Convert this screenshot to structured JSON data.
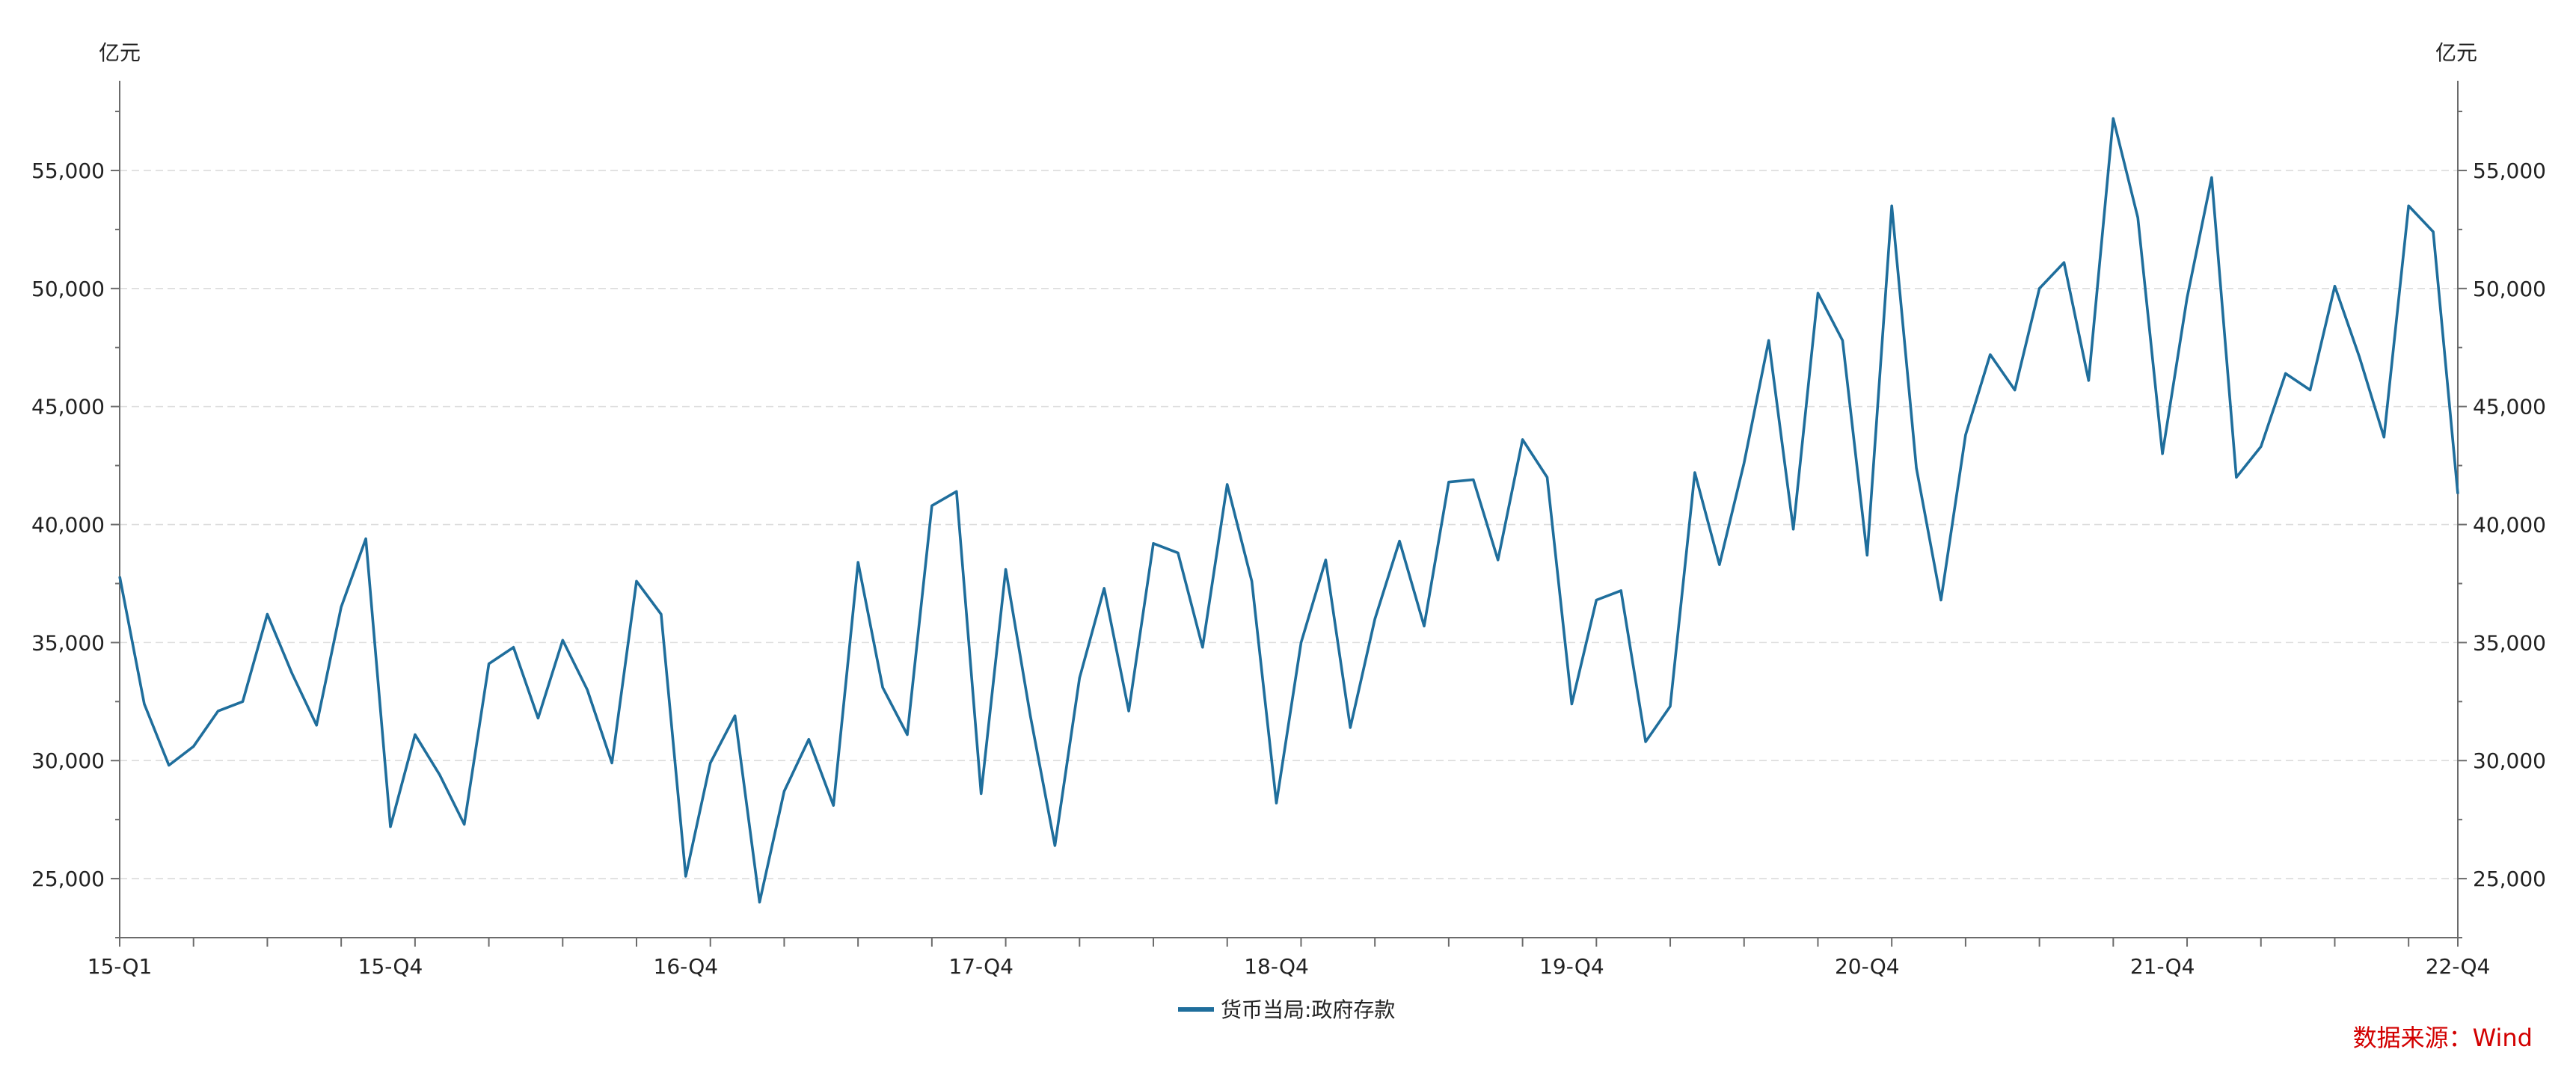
{
  "chart_data": {
    "type": "line",
    "left_unit": "亿元",
    "right_unit": "亿元",
    "ylim": [
      22500,
      58800
    ],
    "y_ticks": [
      25000,
      30000,
      35000,
      40000,
      45000,
      50000,
      55000
    ],
    "y_tick_labels": [
      "25,000",
      "30,000",
      "35,000",
      "40,000",
      "45,000",
      "50,000",
      "55,000"
    ],
    "x_tick_labels": [
      "15-Q1",
      "15-Q4",
      "16-Q4",
      "17-Q4",
      "18-Q4",
      "19-Q4",
      "20-Q4",
      "21-Q4",
      "22-Q4"
    ],
    "x_tick_label_months": [
      0,
      11,
      23,
      35,
      47,
      59,
      71,
      83,
      95
    ],
    "grid": true,
    "legend_position": "bottom-center",
    "series": [
      {
        "name": "货币当局:政府存款",
        "color": "#1f6e9c",
        "values": [
          37800,
          32400,
          29800,
          30600,
          32100,
          32500,
          36200,
          33700,
          31500,
          36500,
          39400,
          27200,
          31100,
          29400,
          27300,
          34100,
          34800,
          31800,
          35100,
          33000,
          29900,
          37600,
          36200,
          25100,
          29900,
          31900,
          24000,
          28700,
          30900,
          28100,
          38400,
          33100,
          31100,
          40800,
          41400,
          28600,
          38100,
          31900,
          26400,
          33500,
          37300,
          32100,
          39200,
          38800,
          34800,
          41700,
          37600,
          28200,
          35000,
          38500,
          31400,
          36000,
          39300,
          35700,
          41800,
          41900,
          38500,
          43600,
          42000,
          32400,
          36800,
          37200,
          30800,
          32300,
          42200,
          38300,
          42600,
          47800,
          39800,
          49800,
          47800,
          38700,
          53500,
          42400,
          36800,
          43800,
          47200,
          45700,
          50000,
          51100,
          46100,
          57200,
          53000,
          43000,
          49600,
          54700,
          42000,
          43300,
          46400,
          45700,
          50100,
          47100,
          43700,
          53500,
          52400,
          41300
        ]
      }
    ]
  },
  "source": "数据来源：Wind"
}
